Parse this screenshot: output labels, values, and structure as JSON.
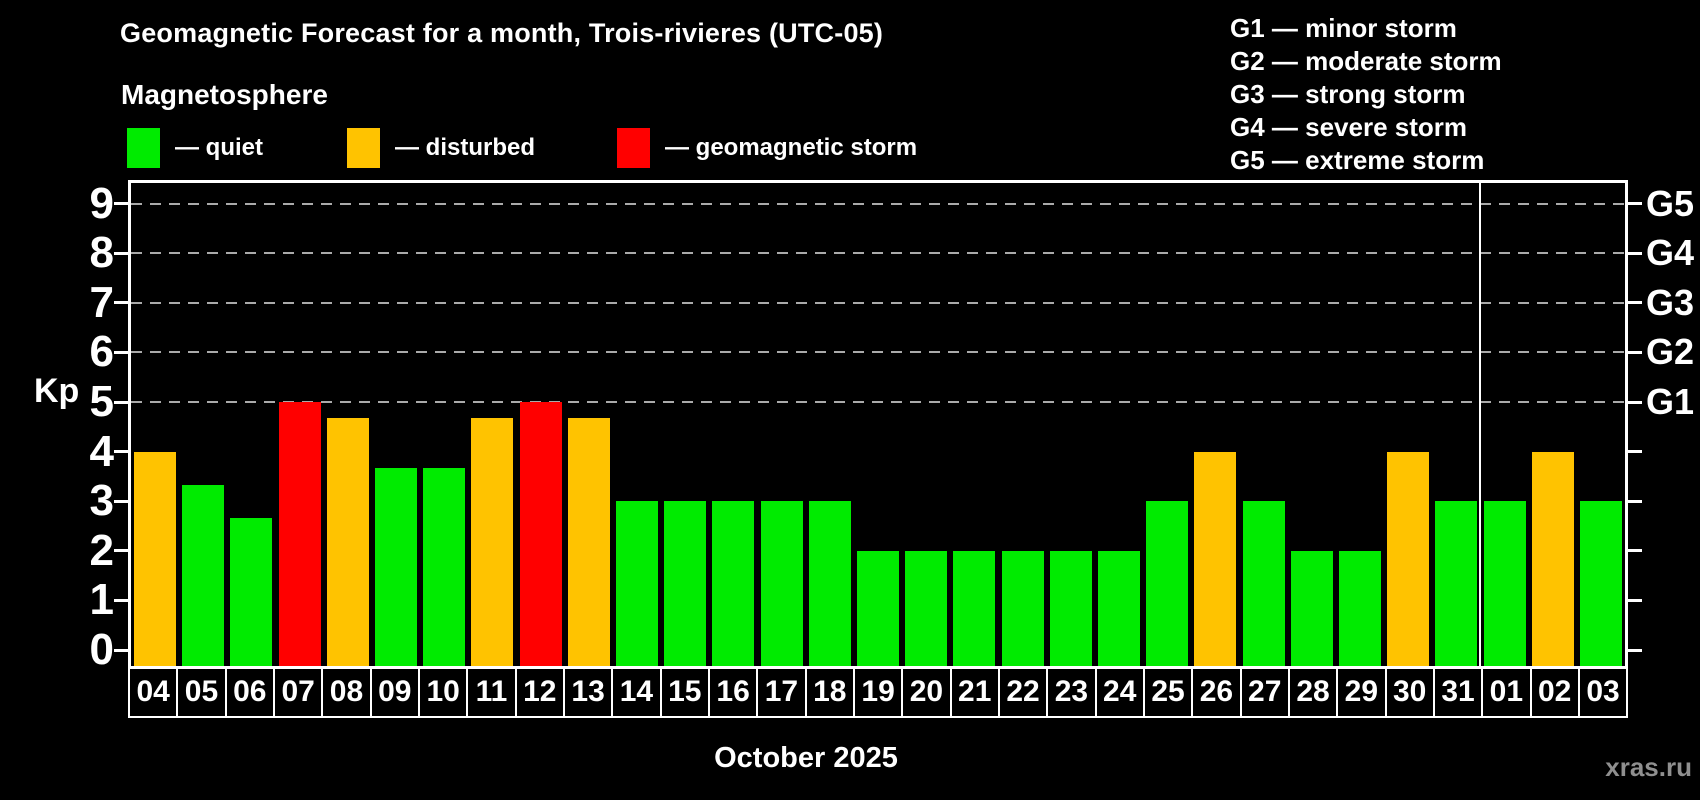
{
  "title": "Geomagnetic Forecast for a month, Trois-rivieres (UTC-05)",
  "subtitle": "Magnetosphere",
  "legend": {
    "quiet_label": "— quiet",
    "disturbed_label": "— disturbed",
    "storm_label": "— geomagnetic storm"
  },
  "g_legend": [
    "G1 — minor storm",
    "G2 — moderate storm",
    "G3 — strong storm",
    "G4 — severe storm",
    "G5 — extreme storm"
  ],
  "colors": {
    "quiet": "#00EB00",
    "disturbed": "#FFC300",
    "storm": "#FF0000",
    "grid": "#AAAAAA",
    "axis": "#FFFFFF",
    "watermark": "#8F8F8F",
    "background": "#000000"
  },
  "chart_data": {
    "type": "bar",
    "title": "Geomagnetic Forecast for a month, Trois-rivieres (UTC-05)",
    "xlabel": "October 2025",
    "ylabel": "Kp",
    "ylim": [
      0,
      9
    ],
    "grid": "dashed horizontal at Kp 5-9 only",
    "legend_position": "top-left",
    "y_ticks": [
      0,
      1,
      2,
      3,
      4,
      5,
      6,
      7,
      8,
      9
    ],
    "gridlines": [
      5,
      6,
      7,
      8,
      9
    ],
    "right_axis": [
      {
        "label": "G1",
        "kp": 5
      },
      {
        "label": "G2",
        "kp": 6
      },
      {
        "label": "G3",
        "kp": 7
      },
      {
        "label": "G4",
        "kp": 8
      },
      {
        "label": "G5",
        "kp": 9
      }
    ],
    "month_separator_after_index": 27,
    "bars": [
      {
        "day": "04",
        "kp": 4,
        "status": "disturbed"
      },
      {
        "day": "05",
        "kp": 3.33,
        "status": "quiet"
      },
      {
        "day": "06",
        "kp": 2.67,
        "status": "quiet"
      },
      {
        "day": "07",
        "kp": 5,
        "status": "storm"
      },
      {
        "day": "08",
        "kp": 4.67,
        "status": "disturbed"
      },
      {
        "day": "09",
        "kp": 3.67,
        "status": "quiet"
      },
      {
        "day": "10",
        "kp": 3.67,
        "status": "quiet"
      },
      {
        "day": "11",
        "kp": 4.67,
        "status": "disturbed"
      },
      {
        "day": "12",
        "kp": 5,
        "status": "storm"
      },
      {
        "day": "13",
        "kp": 4.67,
        "status": "disturbed"
      },
      {
        "day": "14",
        "kp": 3,
        "status": "quiet"
      },
      {
        "day": "15",
        "kp": 3,
        "status": "quiet"
      },
      {
        "day": "16",
        "kp": 3,
        "status": "quiet"
      },
      {
        "day": "17",
        "kp": 3,
        "status": "quiet"
      },
      {
        "day": "18",
        "kp": 3,
        "status": "quiet"
      },
      {
        "day": "19",
        "kp": 2,
        "status": "quiet"
      },
      {
        "day": "20",
        "kp": 2,
        "status": "quiet"
      },
      {
        "day": "21",
        "kp": 2,
        "status": "quiet"
      },
      {
        "day": "22",
        "kp": 2,
        "status": "quiet"
      },
      {
        "day": "23",
        "kp": 2,
        "status": "quiet"
      },
      {
        "day": "24",
        "kp": 2,
        "status": "quiet"
      },
      {
        "day": "25",
        "kp": 3,
        "status": "quiet"
      },
      {
        "day": "26",
        "kp": 4,
        "status": "disturbed"
      },
      {
        "day": "27",
        "kp": 3,
        "status": "quiet"
      },
      {
        "day": "28",
        "kp": 2,
        "status": "quiet"
      },
      {
        "day": "29",
        "kp": 2,
        "status": "quiet"
      },
      {
        "day": "30",
        "kp": 4,
        "status": "disturbed"
      },
      {
        "day": "31",
        "kp": 3,
        "status": "quiet"
      },
      {
        "day": "01",
        "kp": 3,
        "status": "quiet"
      },
      {
        "day": "02",
        "kp": 4,
        "status": "disturbed"
      },
      {
        "day": "03",
        "kp": 3,
        "status": "quiet"
      }
    ]
  },
  "footer": {
    "caption": "October 2025",
    "watermark": "xras.ru"
  }
}
